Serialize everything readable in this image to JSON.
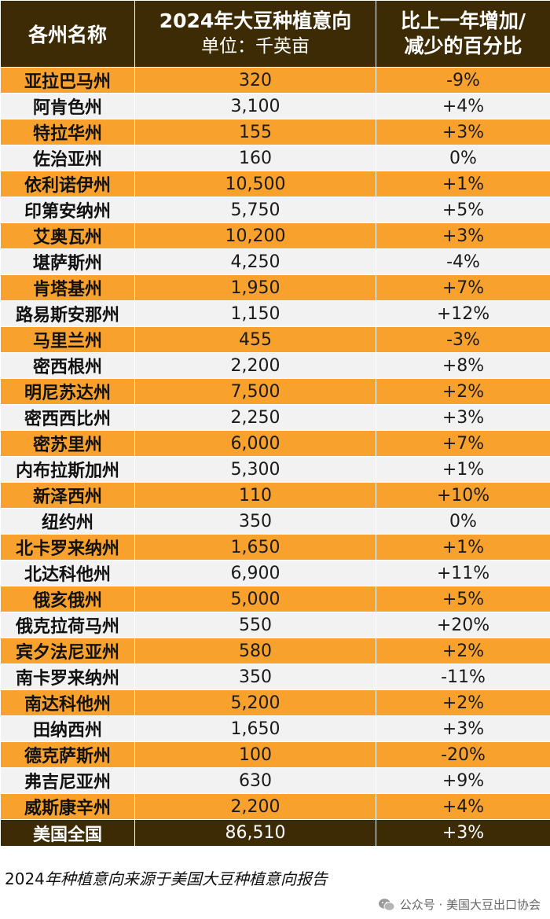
{
  "header": {
    "col_state": "各州名称",
    "col_acres_line1": "2024年大豆种植意向",
    "col_acres_line2": "单位：千英亩",
    "col_change_line1": "比上一年增加/",
    "col_change_line2": "减少的百分比"
  },
  "rows": [
    {
      "state": "亚拉巴马州",
      "acres": "320",
      "change": "-9%"
    },
    {
      "state": "阿肯色州",
      "acres": "3,100",
      "change": "+4%"
    },
    {
      "state": "特拉华州",
      "acres": "155",
      "change": "+3%"
    },
    {
      "state": "佐治亚州",
      "acres": "160",
      "change": "0%"
    },
    {
      "state": "依利诺伊州",
      "acres": "10,500",
      "change": "+1%"
    },
    {
      "state": "印第安纳州",
      "acres": "5,750",
      "change": "+5%"
    },
    {
      "state": "艾奥瓦州",
      "acres": "10,200",
      "change": "+3%"
    },
    {
      "state": "堪萨斯州",
      "acres": "4,250",
      "change": "-4%"
    },
    {
      "state": "肯塔基州",
      "acres": "1,950",
      "change": "+7%"
    },
    {
      "state": "路易斯安那州",
      "acres": "1,150",
      "change": "+12%"
    },
    {
      "state": "马里兰州",
      "acres": "455",
      "change": "-3%"
    },
    {
      "state": "密西根州",
      "acres": "2,200",
      "change": "+8%"
    },
    {
      "state": "明尼苏达州",
      "acres": "7,500",
      "change": "+2%"
    },
    {
      "state": "密西西比州",
      "acres": "2,250",
      "change": "+3%"
    },
    {
      "state": "密苏里州",
      "acres": "6,000",
      "change": "+7%"
    },
    {
      "state": "内布拉斯加州",
      "acres": "5,300",
      "change": "+1%"
    },
    {
      "state": "新泽西州",
      "acres": "110",
      "change": "+10%"
    },
    {
      "state": "纽约州",
      "acres": "350",
      "change": "0%"
    },
    {
      "state": "北卡罗来纳州",
      "acres": "1,650",
      "change": "+1%"
    },
    {
      "state": "北达科他州",
      "acres": "6,900",
      "change": "+11%"
    },
    {
      "state": "俄亥俄州",
      "acres": "5,000",
      "change": "+5%"
    },
    {
      "state": "俄克拉荷马州",
      "acres": "550",
      "change": "+20%"
    },
    {
      "state": "宾夕法尼亚州",
      "acres": "580",
      "change": "+2%"
    },
    {
      "state": "南卡罗来纳州",
      "acres": "350",
      "change": "-11%"
    },
    {
      "state": "南达科他州",
      "acres": "5,200",
      "change": "+2%"
    },
    {
      "state": "田纳西州",
      "acres": "1,650",
      "change": "+3%"
    },
    {
      "state": "德克萨斯州",
      "acres": "100",
      "change": "-20%"
    },
    {
      "state": "弗吉尼亚州",
      "acres": "630",
      "change": "+9%"
    },
    {
      "state": "威斯康辛州",
      "acres": "2,200",
      "change": "+4%"
    }
  ],
  "total": {
    "state": "美国全国",
    "acres": "86,510",
    "change": "+3%"
  },
  "source_year": "2024",
  "source_text": "年种植意向来源于美国大豆种植意向报告",
  "watermark": {
    "icon": "wechat-icon",
    "text": "公众号 · 美国大豆出口协会"
  },
  "colors": {
    "header_bg": "#3d2b06",
    "orange_row": "#f8a22d",
    "light_row": "#f2f2f2"
  }
}
